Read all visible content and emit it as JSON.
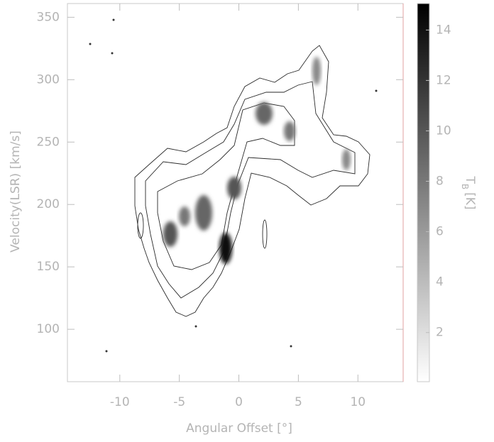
{
  "chart_data": {
    "type": "contour",
    "xlabel": "Angular Offset [°]",
    "ylabel": "Velocity(LSR) [km/s]",
    "colorbar_label": {
      "symbol": "T",
      "subscript": "B",
      "unit": "[K]"
    },
    "xlim": [
      -14.4,
      13.8
    ],
    "xticks": [
      -10,
      -5,
      0,
      5,
      10
    ],
    "ylim": [
      58,
      361
    ],
    "yticks": [
      100,
      150,
      200,
      250,
      300,
      350
    ],
    "clim": [
      0.05,
      15.05
    ],
    "cticks": [
      2,
      4,
      6,
      8,
      10,
      12,
      14
    ],
    "colormap": [
      "#ffffff",
      "#000000"
    ]
  }
}
